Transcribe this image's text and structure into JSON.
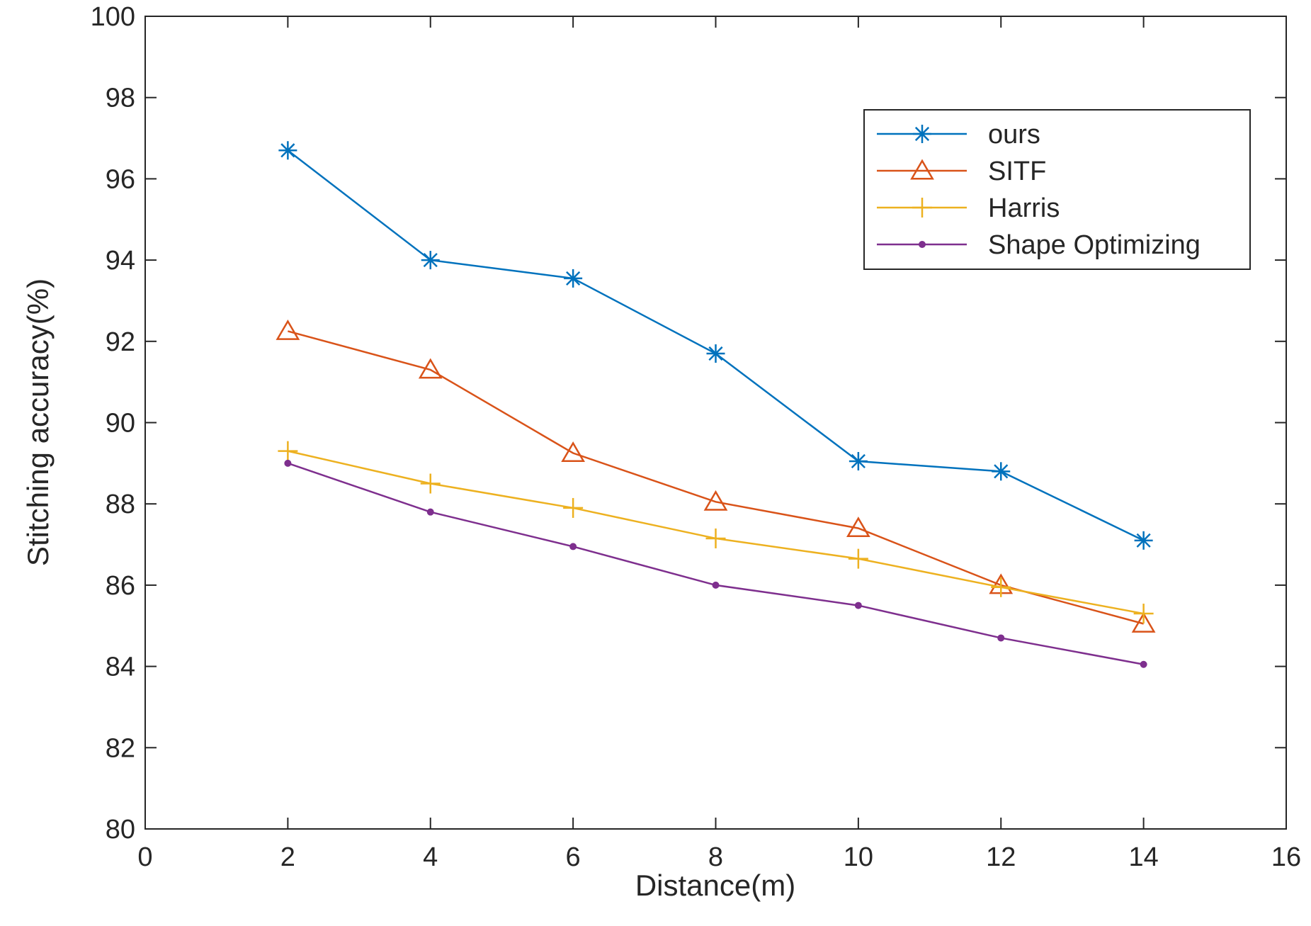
{
  "chart_data": {
    "type": "line",
    "title": "",
    "xlabel": "Distance(m)",
    "ylabel": "Stitching accuracy(%)",
    "xlim": [
      0,
      16
    ],
    "ylim": [
      80,
      100
    ],
    "xticks": [
      0,
      2,
      4,
      6,
      8,
      10,
      12,
      14,
      16
    ],
    "yticks": [
      80,
      82,
      84,
      86,
      88,
      90,
      92,
      94,
      96,
      98,
      100
    ],
    "grid": false,
    "legend_position": "top-right",
    "x": [
      2,
      4,
      6,
      8,
      10,
      12,
      14
    ],
    "series": [
      {
        "name": "ours",
        "color": "#0072BD",
        "marker": "asterisk",
        "values": [
          96.7,
          94.0,
          93.55,
          91.7,
          89.05,
          88.8,
          87.1
        ]
      },
      {
        "name": "SITF",
        "color": "#D95319",
        "marker": "triangle",
        "values": [
          92.25,
          91.3,
          89.25,
          88.05,
          87.4,
          86.0,
          85.05
        ]
      },
      {
        "name": "Harris",
        "color": "#EDB120",
        "marker": "plus",
        "values": [
          89.3,
          88.5,
          87.9,
          87.15,
          86.65,
          85.95,
          85.3
        ]
      },
      {
        "name": "Shape Optimizing",
        "color": "#7E2F8E",
        "marker": "dot",
        "values": [
          89.0,
          87.8,
          86.95,
          86.0,
          85.5,
          84.7,
          84.05
        ]
      }
    ]
  }
}
